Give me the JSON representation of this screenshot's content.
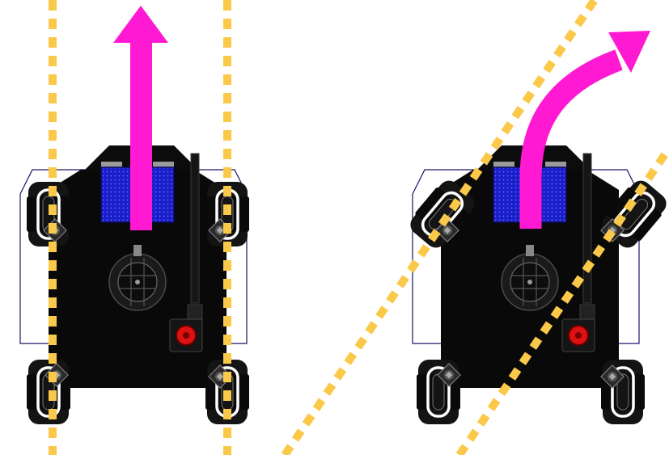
{
  "figure": {
    "panels": [
      {
        "id": "left",
        "mode": "straight-drive",
        "wheel_orientation": "parallel",
        "direction": "forward"
      },
      {
        "id": "right",
        "mode": "steering",
        "wheel_orientation": "front-wheels-angled",
        "direction": "curved-right"
      }
    ]
  },
  "colors": {
    "arrow": "#ff19d2",
    "guide_line": "#fbc94a",
    "chassis": "#090909",
    "wheel_outer": "#141414",
    "wheel_inner": "#ffffff",
    "battery": "#1a1ec8",
    "battery_dots": "#5a5cff",
    "stop_button": "#dd1111",
    "outline": "#1a1466",
    "metal": "#9a9a9a"
  },
  "icons": {
    "arrow": "arrow-up-icon",
    "curved_arrow": "curved-arrow-icon",
    "stop": "emergency-stop-icon"
  }
}
